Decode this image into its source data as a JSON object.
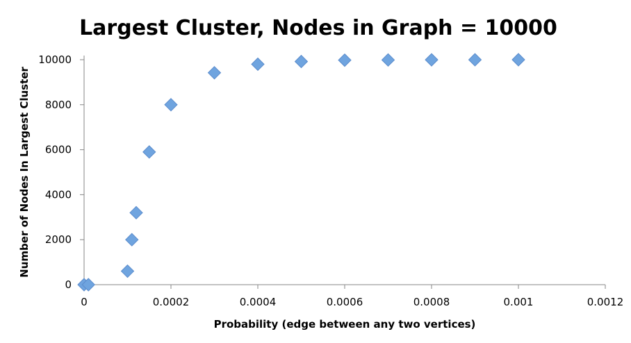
{
  "chart_data": {
    "type": "scatter",
    "title": "Largest Cluster, Nodes in Graph = 10000",
    "xlabel": "Probability (edge between any two vertices)",
    "ylabel": "Number of Nodes In Largest Cluster",
    "xlim": [
      0,
      0.0012
    ],
    "ylim": [
      0,
      10000
    ],
    "x_ticks": [
      "0",
      "0.0002",
      "0.0004",
      "0.0006",
      "0.0008",
      "0.001",
      "0.0012"
    ],
    "x_tick_values": [
      0,
      0.0002,
      0.0004,
      0.0006,
      0.0008,
      0.001,
      0.0012
    ],
    "y_ticks": [
      "0",
      "2000",
      "4000",
      "6000",
      "8000",
      "10000"
    ],
    "y_tick_values": [
      0,
      2000,
      4000,
      6000,
      8000,
      10000
    ],
    "grid": false,
    "legend": "none",
    "marker": "diamond",
    "marker_color": "#6fa4df",
    "marker_edge_color": "#5b8ccc",
    "points": [
      {
        "x": 0.0,
        "y": 0
      },
      {
        "x": 1e-05,
        "y": 0
      },
      {
        "x": 0.0001,
        "y": 600
      },
      {
        "x": 0.00011,
        "y": 2000
      },
      {
        "x": 0.00012,
        "y": 3200
      },
      {
        "x": 0.00015,
        "y": 5900
      },
      {
        "x": 0.0002,
        "y": 8000
      },
      {
        "x": 0.0003,
        "y": 9420
      },
      {
        "x": 0.0004,
        "y": 9800
      },
      {
        "x": 0.0005,
        "y": 9920
      },
      {
        "x": 0.0006,
        "y": 9980
      },
      {
        "x": 0.0007,
        "y": 9990
      },
      {
        "x": 0.0008,
        "y": 9995
      },
      {
        "x": 0.0009,
        "y": 9998
      },
      {
        "x": 0.001,
        "y": 10000
      }
    ]
  }
}
